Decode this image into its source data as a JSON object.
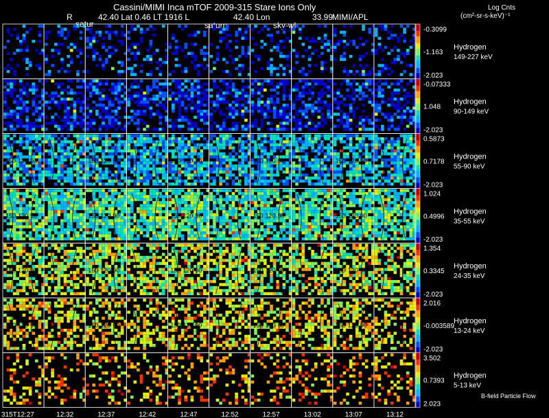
{
  "header": {
    "title": "Cassini/MIMI Inca mTOF  2009-315   Stare    Ions Only",
    "line2": [
      "R",
      "42.40 Lat 0.46 LT 1916 L",
      "42.40 Lon",
      "33.99",
      "MIMI/APL"
    ],
    "target_labels": [
      "satur",
      "saturn",
      "sky-wl"
    ],
    "units_line1": "Log Cnts",
    "units_line2": "(cm²-sr-s-keV)⁻¹"
  },
  "chart_data": {
    "type": "heatmap",
    "title": "Cassini/MIMI Inca mTOF  2009-315   Stare    Ions Only",
    "time_ticks": [
      "315T12:27",
      "12:32",
      "12:37",
      "12:42",
      "12:47",
      "12:52",
      "12:57",
      "13:02",
      "13:07",
      "13:12"
    ],
    "footer_note": "B-field Particle Flow",
    "colorscale": [
      "#0000c8",
      "#0050ff",
      "#00b4ff",
      "#00e0c0",
      "#80f060",
      "#e0f000",
      "#ffa000",
      "#ff3000",
      "#c80000"
    ],
    "contour_labels": [
      "150",
      "120",
      "90"
    ],
    "panels": [
      {
        "species": "Hydrogen",
        "energy": "149-227 keV",
        "cmax": "-0.3099",
        "cmid": "-1.163",
        "cmin": "-2.023",
        "density": 0.28,
        "level": 0.12
      },
      {
        "species": "Hydrogen",
        "energy": "90-149 keV",
        "cmax": "-0.07333",
        "cmid": "1.048",
        "cmin": "-2.023",
        "density": 0.55,
        "level": 0.1
      },
      {
        "species": "Hydrogen",
        "energy": "55-90 keV",
        "cmax": "0.5873",
        "cmid": "0.7178",
        "cmin": "-2.023",
        "density": 0.72,
        "level": 0.3
      },
      {
        "species": "Hydrogen",
        "energy": "35-55 keV",
        "cmax": "1.024",
        "cmid": "0.4996",
        "cmin": "-2.023",
        "density": 0.8,
        "level": 0.42
      },
      {
        "species": "Hydrogen",
        "energy": "24-35 keV",
        "cmax": "1.354",
        "cmid": "0.3345",
        "cmin": "-2.023",
        "density": 0.6,
        "level": 0.55
      },
      {
        "species": "Hydrogen",
        "energy": "13-24 keV",
        "cmax": "2.016",
        "cmid": "-0.003589",
        "cmin": "-2.023",
        "density": 0.45,
        "level": 0.62
      },
      {
        "species": "Hydrogen",
        "energy": "5-13 keV",
        "cmax": "3.502",
        "cmid": "0.7393",
        "cmin": "2.023",
        "density": 0.25,
        "level": 0.7
      }
    ]
  }
}
